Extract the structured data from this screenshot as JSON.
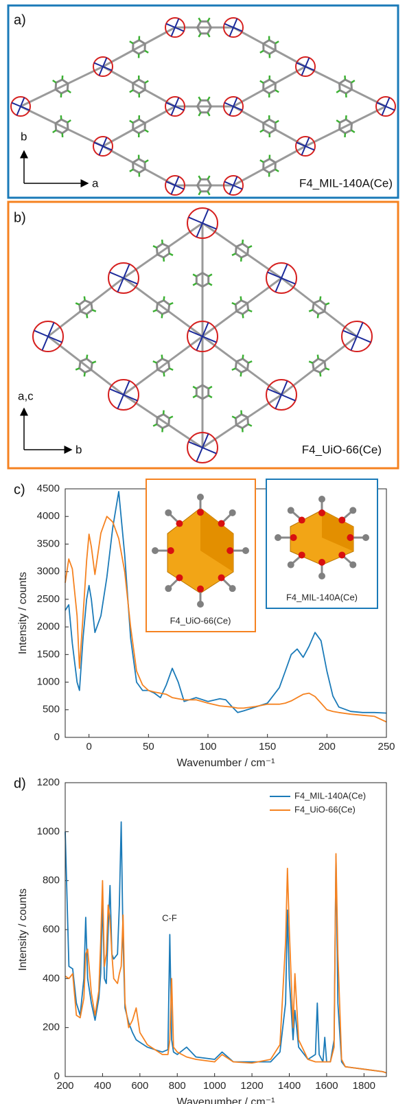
{
  "panels": {
    "a": {
      "label": "a)",
      "name": "F4_MIL-140A(Ce)",
      "axis_labels": [
        "b",
        "a"
      ]
    },
    "b": {
      "label": "b)",
      "name": "F4_UiO-66(Ce)",
      "axis_labels": [
        "a,c",
        "b"
      ]
    }
  },
  "chart_data": [
    {
      "type": "line",
      "panel_label": "c)",
      "x_label": "Wavenumber / cm⁻¹",
      "y_label": "Intensity / counts",
      "insets": [
        {
          "label": "F4_UiO-66(Ce)",
          "color": "#f58220"
        },
        {
          "label": "F4_MIL-140A(Ce)",
          "color": "#1a7ab8"
        }
      ],
      "x": [
        -20,
        -17,
        -14,
        -10,
        -8,
        -5,
        -2,
        0,
        2,
        5,
        10,
        15,
        20,
        25,
        30,
        35,
        40,
        45,
        50,
        55,
        60,
        65,
        70,
        75,
        80,
        90,
        100,
        110,
        115,
        120,
        125,
        130,
        140,
        150,
        160,
        165,
        170,
        175,
        180,
        185,
        190,
        195,
        200,
        205,
        210,
        220,
        230,
        240,
        250
      ],
      "series": [
        {
          "name": "F4_MIL-140A(Ce)",
          "color": "#1a7ab8",
          "values": [
            2300,
            2400,
            1700,
            1000,
            850,
            1800,
            2500,
            2750,
            2500,
            1900,
            2200,
            2900,
            3800,
            4450,
            3300,
            1800,
            1000,
            850,
            850,
            800,
            720,
            950,
            1250,
            1000,
            650,
            720,
            650,
            700,
            680,
            560,
            450,
            480,
            550,
            620,
            900,
            1200,
            1500,
            1600,
            1450,
            1650,
            1900,
            1750,
            1200,
            750,
            550,
            470,
            450,
            450,
            440
          ]
        },
        {
          "name": "F4_UiO-66(Ce)",
          "color": "#f58220",
          "values": [
            2800,
            3230,
            3050,
            2200,
            1250,
            2200,
            3200,
            3680,
            3450,
            2950,
            3700,
            4000,
            3900,
            3600,
            3000,
            2000,
            1200,
            950,
            850,
            820,
            800,
            780,
            720,
            700,
            680,
            680,
            620,
            570,
            560,
            550,
            530,
            530,
            560,
            600,
            600,
            620,
            660,
            720,
            780,
            800,
            740,
            620,
            500,
            470,
            450,
            420,
            400,
            380,
            280
          ]
        }
      ],
      "xlim": [
        -20,
        250
      ],
      "xticks": [
        0,
        50,
        100,
        150,
        200,
        250
      ],
      "ylim": [
        0,
        4500
      ],
      "yticks": [
        0,
        500,
        1000,
        1500,
        2000,
        2500,
        3000,
        3500,
        4000,
        4500
      ]
    },
    {
      "type": "line",
      "panel_label": "d)",
      "x_label": "Wavenumber / cm⁻¹",
      "y_label": "Intensity / counts",
      "annotation": "C-F",
      "legend": "upper right",
      "x": [
        200,
        220,
        240,
        260,
        280,
        300,
        310,
        320,
        340,
        360,
        380,
        390,
        400,
        410,
        420,
        430,
        440,
        450,
        460,
        480,
        490,
        500,
        510,
        520,
        540,
        560,
        580,
        600,
        640,
        680,
        720,
        750,
        760,
        770,
        780,
        800,
        850,
        900,
        1000,
        1040,
        1100,
        1200,
        1300,
        1350,
        1380,
        1390,
        1400,
        1420,
        1430,
        1450,
        1500,
        1540,
        1550,
        1560,
        1580,
        1590,
        1600,
        1620,
        1640,
        1650,
        1660,
        1680,
        1700,
        1800,
        1900,
        1920
      ],
      "series": [
        {
          "name": "F4_MIL-140A(Ce)",
          "color": "#1a7ab8",
          "values": [
            1000,
            450,
            440,
            300,
            250,
            400,
            650,
            400,
            300,
            230,
            320,
            420,
            720,
            400,
            380,
            600,
            780,
            500,
            480,
            500,
            700,
            1040,
            550,
            280,
            220,
            180,
            150,
            140,
            120,
            110,
            100,
            110,
            580,
            150,
            100,
            90,
            120,
            80,
            70,
            100,
            60,
            60,
            60,
            100,
            300,
            680,
            400,
            150,
            270,
            120,
            70,
            90,
            300,
            90,
            60,
            160,
            60,
            60,
            150,
            900,
            300,
            60,
            40,
            30,
            20,
            15
          ]
        },
        {
          "name": "F4_UiO-66(Ce)",
          "color": "#f58220",
          "values": [
            410,
            400,
            420,
            250,
            240,
            320,
            500,
            520,
            340,
            250,
            350,
            550,
            800,
            450,
            500,
            700,
            640,
            500,
            400,
            380,
            420,
            450,
            660,
            300,
            200,
            230,
            280,
            180,
            130,
            110,
            90,
            90,
            150,
            400,
            120,
            100,
            80,
            70,
            60,
            90,
            60,
            55,
            70,
            130,
            550,
            850,
            600,
            200,
            420,
            150,
            70,
            60,
            60,
            60,
            60,
            60,
            60,
            60,
            120,
            910,
            500,
            70,
            40,
            30,
            20,
            15
          ]
        }
      ],
      "xlim": [
        200,
        1920
      ],
      "xticks": [
        200,
        400,
        600,
        800,
        1000,
        1200,
        1400,
        1600,
        1800
      ],
      "ylim": [
        0,
        1200
      ],
      "yticks": [
        0,
        200,
        400,
        600,
        800,
        1000,
        1200
      ]
    }
  ]
}
